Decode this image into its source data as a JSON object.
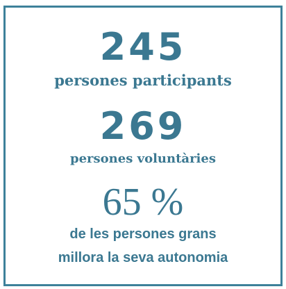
{
  "items": [
    {
      "value": "245",
      "label": "persones participants"
    },
    {
      "value": "269",
      "label": "persones voluntàries"
    },
    {
      "value": "65 %",
      "label_lines": [
        "de les persones grans",
        "millora la seva autonomia"
      ]
    }
  ]
}
